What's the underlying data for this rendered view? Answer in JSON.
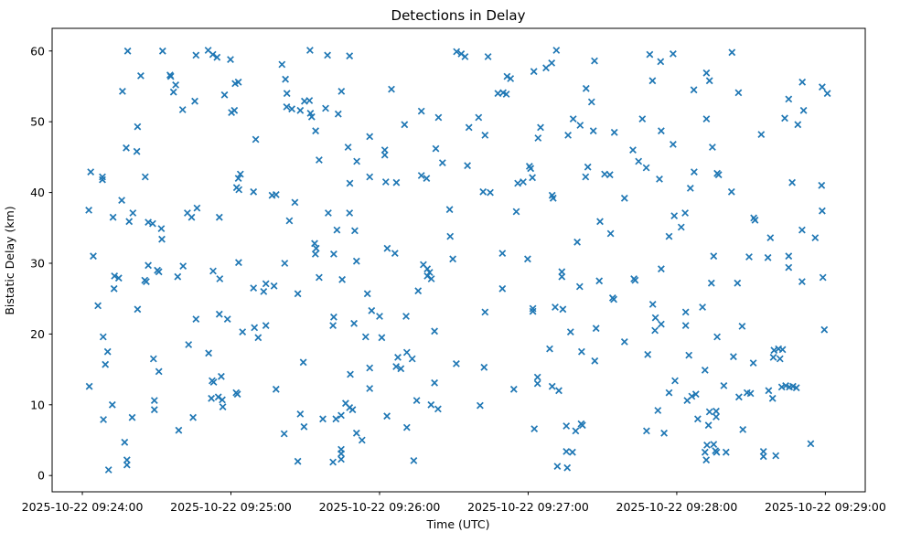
{
  "chart_data": {
    "type": "scatter",
    "title": "Detections in Delay",
    "xlabel": "Time (UTC)",
    "ylabel": "Bistatic Delay (km)",
    "marker": "x",
    "marker_color": "#1f77b4",
    "background_color": "#ffffff",
    "spine_color": "#000000",
    "grid": "off",
    "legend": "none",
    "x_unit": "seconds after 2025-10-22 09:24:00 UTC",
    "xlim_seconds": [
      -12.2,
      316.1
    ],
    "ylim": [
      -2.3,
      63.2
    ],
    "x_tick_seconds": [
      0,
      60,
      120,
      180,
      240,
      300
    ],
    "x_tick_labels": [
      "2025-10-22 09:24:00",
      "2025-10-22 09:25:00",
      "2025-10-22 09:26:00",
      "2025-10-22 09:27:00",
      "2025-10-22 09:28:00",
      "2025-10-22 09:29:00"
    ],
    "y_ticks": [
      0,
      10,
      20,
      30,
      40,
      50,
      60
    ],
    "points": [
      [
        18.3,
        60.0
      ],
      [
        32.4,
        60.0
      ],
      [
        45.9,
        59.4
      ],
      [
        50.8,
        60.1
      ],
      [
        52.7,
        59.5
      ],
      [
        54.4,
        59.1
      ],
      [
        59.8,
        58.8
      ],
      [
        23.6,
        56.5
      ],
      [
        35.4,
        56.6
      ],
      [
        35.7,
        56.4
      ],
      [
        37.7,
        55.2
      ],
      [
        36.8,
        54.2
      ],
      [
        16.2,
        54.3
      ],
      [
        61.7,
        55.4
      ],
      [
        63.0,
        55.6
      ],
      [
        57.4,
        53.8
      ],
      [
        45.4,
        52.9
      ],
      [
        40.5,
        51.7
      ],
      [
        60.2,
        51.3
      ],
      [
        61.4,
        51.6
      ],
      [
        22.3,
        49.3
      ],
      [
        17.7,
        46.3
      ],
      [
        22.0,
        45.8
      ],
      [
        3.4,
        42.9
      ],
      [
        8.1,
        42.2
      ],
      [
        8.1,
        41.8
      ],
      [
        25.4,
        42.2
      ],
      [
        63.8,
        42.6
      ],
      [
        63.0,
        42.0
      ],
      [
        91.9,
        60.1
      ],
      [
        99.0,
        59.4
      ],
      [
        107.9,
        59.3
      ],
      [
        80.6,
        58.1
      ],
      [
        82.0,
        56.0
      ],
      [
        82.6,
        54.0
      ],
      [
        104.6,
        54.3
      ],
      [
        124.8,
        54.6
      ],
      [
        82.5,
        52.1
      ],
      [
        89.7,
        52.9
      ],
      [
        91.7,
        53.0
      ],
      [
        84.6,
        51.8
      ],
      [
        88.0,
        51.6
      ],
      [
        92.1,
        51.2
      ],
      [
        92.6,
        50.7
      ],
      [
        98.2,
        51.9
      ],
      [
        103.3,
        51.1
      ],
      [
        136.9,
        51.5
      ],
      [
        143.8,
        50.6
      ],
      [
        130.1,
        49.6
      ],
      [
        94.2,
        48.7
      ],
      [
        70.0,
        47.5
      ],
      [
        116.0,
        47.9
      ],
      [
        107.3,
        46.4
      ],
      [
        122.1,
        46.0
      ],
      [
        122.1,
        45.3
      ],
      [
        142.7,
        46.2
      ],
      [
        95.6,
        44.6
      ],
      [
        110.8,
        44.4
      ],
      [
        145.4,
        44.2
      ],
      [
        116.0,
        42.2
      ],
      [
        136.9,
        42.4
      ],
      [
        139.0,
        42.0
      ],
      [
        122.5,
        41.5
      ],
      [
        126.8,
        41.4
      ],
      [
        151.1,
        59.9
      ],
      [
        153.0,
        59.6
      ],
      [
        154.5,
        59.2
      ],
      [
        163.8,
        59.2
      ],
      [
        191.4,
        60.1
      ],
      [
        189.5,
        58.3
      ],
      [
        187.2,
        57.6
      ],
      [
        182.3,
        57.1
      ],
      [
        206.8,
        58.6
      ],
      [
        229.1,
        59.5
      ],
      [
        171.5,
        56.4
      ],
      [
        172.9,
        56.1
      ],
      [
        230.2,
        55.8
      ],
      [
        167.8,
        54.0
      ],
      [
        169.9,
        54.1
      ],
      [
        171.2,
        53.9
      ],
      [
        203.4,
        54.7
      ],
      [
        205.6,
        52.8
      ],
      [
        160.0,
        50.6
      ],
      [
        156.1,
        49.2
      ],
      [
        162.6,
        48.1
      ],
      [
        198.2,
        50.4
      ],
      [
        201.0,
        49.5
      ],
      [
        226.1,
        50.4
      ],
      [
        185.0,
        49.2
      ],
      [
        184.0,
        47.7
      ],
      [
        196.1,
        48.1
      ],
      [
        206.3,
        48.7
      ],
      [
        214.8,
        48.5
      ],
      [
        222.3,
        46.0
      ],
      [
        224.6,
        44.4
      ],
      [
        227.7,
        43.5
      ],
      [
        155.5,
        43.8
      ],
      [
        180.5,
        43.7
      ],
      [
        181.0,
        43.4
      ],
      [
        181.7,
        42.1
      ],
      [
        204.1,
        43.6
      ],
      [
        203.2,
        42.2
      ],
      [
        210.9,
        42.6
      ],
      [
        213.0,
        42.5
      ],
      [
        175.8,
        41.3
      ],
      [
        178.0,
        41.5
      ],
      [
        238.5,
        59.6
      ],
      [
        233.5,
        58.5
      ],
      [
        262.3,
        59.8
      ],
      [
        252.0,
        56.9
      ],
      [
        253.2,
        55.8
      ],
      [
        246.9,
        54.5
      ],
      [
        264.9,
        54.1
      ],
      [
        290.7,
        55.6
      ],
      [
        298.7,
        54.9
      ],
      [
        300.8,
        54.0
      ],
      [
        285.2,
        53.2
      ],
      [
        291.2,
        51.6
      ],
      [
        283.6,
        50.5
      ],
      [
        288.9,
        49.6
      ],
      [
        252.0,
        50.4
      ],
      [
        233.7,
        48.7
      ],
      [
        274.1,
        48.2
      ],
      [
        238.5,
        46.8
      ],
      [
        254.4,
        46.4
      ],
      [
        247.0,
        42.9
      ],
      [
        256.3,
        42.7
      ],
      [
        256.9,
        42.5
      ],
      [
        233.0,
        41.9
      ],
      [
        286.6,
        41.4
      ],
      [
        298.5,
        41.0
      ],
      [
        62.3,
        40.7
      ],
      [
        63.2,
        40.4
      ],
      [
        2.6,
        37.5
      ],
      [
        15.9,
        38.9
      ],
      [
        12.4,
        36.5
      ],
      [
        20.4,
        37.1
      ],
      [
        18.9,
        35.9
      ],
      [
        26.6,
        35.8
      ],
      [
        28.4,
        35.6
      ],
      [
        31.9,
        34.9
      ],
      [
        32.1,
        33.4
      ],
      [
        46.3,
        37.8
      ],
      [
        42.4,
        37.1
      ],
      [
        44.1,
        36.5
      ],
      [
        55.3,
        36.5
      ],
      [
        4.4,
        31.0
      ],
      [
        26.6,
        29.7
      ],
      [
        30.3,
        29.0
      ],
      [
        30.9,
        28.8
      ],
      [
        40.7,
        29.6
      ],
      [
        38.5,
        28.1
      ],
      [
        63.1,
        30.1
      ],
      [
        52.8,
        28.9
      ],
      [
        55.5,
        27.8
      ],
      [
        13.0,
        28.2
      ],
      [
        14.7,
        27.9
      ],
      [
        25.2,
        27.6
      ],
      [
        25.8,
        27.4
      ],
      [
        12.8,
        26.4
      ],
      [
        6.3,
        24.0
      ],
      [
        22.3,
        23.5
      ],
      [
        45.9,
        22.1
      ],
      [
        55.3,
        22.8
      ],
      [
        58.6,
        22.1
      ],
      [
        64.7,
        20.3
      ],
      [
        108.0,
        41.3
      ],
      [
        69.1,
        40.1
      ],
      [
        76.6,
        39.6
      ],
      [
        78.2,
        39.7
      ],
      [
        85.8,
        38.6
      ],
      [
        83.6,
        36.0
      ],
      [
        99.3,
        37.1
      ],
      [
        107.9,
        37.1
      ],
      [
        102.8,
        34.7
      ],
      [
        110.0,
        34.6
      ],
      [
        93.8,
        32.8
      ],
      [
        94.4,
        32.1
      ],
      [
        94.1,
        31.3
      ],
      [
        101.5,
        31.3
      ],
      [
        110.7,
        30.3
      ],
      [
        123.1,
        32.1
      ],
      [
        126.2,
        31.4
      ],
      [
        149.6,
        30.6
      ],
      [
        148.3,
        37.6
      ],
      [
        148.5,
        33.8
      ],
      [
        81.7,
        30.0
      ],
      [
        137.7,
        29.8
      ],
      [
        139.3,
        29.2
      ],
      [
        140.2,
        28.7
      ],
      [
        139.3,
        28.2
      ],
      [
        140.9,
        27.8
      ],
      [
        95.6,
        28.0
      ],
      [
        104.9,
        27.7
      ],
      [
        74.1,
        27.1
      ],
      [
        77.4,
        26.8
      ],
      [
        73.2,
        26.0
      ],
      [
        69.1,
        26.5
      ],
      [
        87.0,
        25.7
      ],
      [
        115.1,
        25.7
      ],
      [
        135.6,
        26.1
      ],
      [
        116.8,
        23.3
      ],
      [
        120.0,
        22.5
      ],
      [
        101.5,
        22.4
      ],
      [
        101.2,
        21.2
      ],
      [
        130.7,
        22.5
      ],
      [
        109.7,
        21.5
      ],
      [
        74.1,
        21.2
      ],
      [
        69.5,
        20.9
      ],
      [
        142.2,
        20.4
      ],
      [
        161.8,
        40.1
      ],
      [
        164.7,
        40.0
      ],
      [
        189.7,
        39.6
      ],
      [
        190.1,
        39.2
      ],
      [
        218.9,
        39.2
      ],
      [
        175.2,
        37.3
      ],
      [
        209.0,
        35.9
      ],
      [
        213.3,
        34.2
      ],
      [
        199.8,
        33.0
      ],
      [
        169.6,
        31.4
      ],
      [
        179.8,
        30.6
      ],
      [
        193.6,
        28.8
      ],
      [
        193.6,
        28.1
      ],
      [
        200.8,
        26.7
      ],
      [
        208.7,
        27.5
      ],
      [
        222.7,
        27.8
      ],
      [
        223.2,
        27.6
      ],
      [
        169.6,
        26.4
      ],
      [
        214.1,
        25.1
      ],
      [
        214.6,
        24.9
      ],
      [
        162.6,
        23.1
      ],
      [
        181.9,
        23.6
      ],
      [
        181.9,
        23.2
      ],
      [
        190.9,
        23.8
      ],
      [
        194.0,
        23.5
      ],
      [
        230.3,
        24.2
      ],
      [
        231.4,
        22.3
      ],
      [
        197.1,
        20.3
      ],
      [
        207.4,
        20.8
      ],
      [
        231.2,
        20.5
      ],
      [
        245.5,
        40.6
      ],
      [
        262.1,
        40.1
      ],
      [
        239.0,
        36.7
      ],
      [
        243.4,
        37.1
      ],
      [
        241.8,
        35.1
      ],
      [
        236.9,
        33.8
      ],
      [
        233.7,
        29.2
      ],
      [
        271.1,
        36.4
      ],
      [
        271.6,
        36.1
      ],
      [
        298.7,
        37.4
      ],
      [
        290.6,
        34.7
      ],
      [
        295.9,
        33.6
      ],
      [
        277.8,
        33.6
      ],
      [
        254.9,
        31.0
      ],
      [
        269.2,
        30.9
      ],
      [
        276.8,
        30.8
      ],
      [
        285.2,
        31.0
      ],
      [
        285.2,
        29.4
      ],
      [
        299.0,
        28.0
      ],
      [
        290.6,
        27.4
      ],
      [
        254.0,
        27.2
      ],
      [
        264.5,
        27.2
      ],
      [
        233.7,
        21.4
      ],
      [
        243.6,
        23.1
      ],
      [
        250.4,
        23.8
      ],
      [
        243.6,
        21.2
      ],
      [
        266.4,
        21.1
      ],
      [
        299.6,
        20.6
      ],
      [
        256.3,
        19.6
      ],
      [
        8.4,
        19.6
      ],
      [
        42.9,
        18.5
      ],
      [
        10.2,
        17.5
      ],
      [
        9.3,
        15.7
      ],
      [
        28.7,
        16.5
      ],
      [
        30.9,
        14.7
      ],
      [
        51.0,
        17.3
      ],
      [
        2.8,
        12.6
      ],
      [
        52.4,
        13.4
      ],
      [
        53.0,
        13.2
      ],
      [
        56.1,
        14.0
      ],
      [
        52.1,
        10.9
      ],
      [
        54.9,
        11.1
      ],
      [
        56.5,
        10.7
      ],
      [
        56.7,
        9.7
      ],
      [
        62.1,
        11.7
      ],
      [
        62.6,
        11.5
      ],
      [
        12.1,
        10.0
      ],
      [
        29.1,
        10.6
      ],
      [
        29.1,
        9.3
      ],
      [
        8.5,
        7.9
      ],
      [
        20.1,
        8.2
      ],
      [
        44.7,
        8.2
      ],
      [
        38.9,
        6.4
      ],
      [
        17.1,
        4.7
      ],
      [
        18.0,
        2.2
      ],
      [
        18.0,
        1.5
      ],
      [
        10.6,
        0.8
      ],
      [
        71.0,
        19.5
      ],
      [
        114.4,
        19.6
      ],
      [
        120.9,
        19.5
      ],
      [
        89.2,
        16.0
      ],
      [
        127.4,
        16.7
      ],
      [
        131.0,
        17.4
      ],
      [
        133.2,
        16.5
      ],
      [
        126.7,
        15.4
      ],
      [
        128.6,
        15.1
      ],
      [
        116.0,
        15.2
      ],
      [
        108.2,
        14.3
      ],
      [
        151.0,
        15.8
      ],
      [
        142.2,
        13.1
      ],
      [
        78.2,
        12.2
      ],
      [
        116.0,
        12.3
      ],
      [
        135.0,
        10.6
      ],
      [
        140.8,
        10.0
      ],
      [
        143.6,
        9.4
      ],
      [
        106.3,
        10.2
      ],
      [
        107.9,
        9.6
      ],
      [
        109.1,
        9.3
      ],
      [
        102.4,
        8.0
      ],
      [
        104.5,
        8.5
      ],
      [
        88.0,
        8.7
      ],
      [
        97.1,
        8.0
      ],
      [
        123.0,
        8.4
      ],
      [
        89.5,
        6.9
      ],
      [
        81.5,
        5.9
      ],
      [
        131.0,
        6.8
      ],
      [
        110.7,
        6.0
      ],
      [
        112.9,
        5.0
      ],
      [
        104.5,
        3.7
      ],
      [
        104.5,
        3.1
      ],
      [
        101.2,
        1.9
      ],
      [
        104.5,
        2.3
      ],
      [
        87.0,
        2.0
      ],
      [
        133.8,
        2.1
      ],
      [
        218.9,
        18.9
      ],
      [
        162.2,
        15.3
      ],
      [
        188.7,
        17.9
      ],
      [
        201.6,
        17.5
      ],
      [
        206.9,
        16.2
      ],
      [
        228.3,
        17.1
      ],
      [
        232.4,
        9.2
      ],
      [
        183.8,
        13.9
      ],
      [
        183.8,
        13.0
      ],
      [
        174.2,
        12.2
      ],
      [
        189.7,
        12.6
      ],
      [
        192.4,
        12.0
      ],
      [
        160.6,
        9.9
      ],
      [
        182.5,
        6.6
      ],
      [
        195.4,
        7.0
      ],
      [
        199.2,
        6.3
      ],
      [
        201.4,
        7.3
      ],
      [
        201.9,
        7.1
      ],
      [
        227.8,
        6.3
      ],
      [
        195.4,
        3.4
      ],
      [
        197.9,
        3.3
      ],
      [
        191.8,
        1.3
      ],
      [
        195.8,
        1.1
      ],
      [
        244.9,
        17.0
      ],
      [
        251.4,
        14.9
      ],
      [
        262.9,
        16.8
      ],
      [
        270.9,
        15.9
      ],
      [
        279.3,
        17.7
      ],
      [
        281.1,
        17.9
      ],
      [
        282.7,
        17.8
      ],
      [
        279.0,
        16.7
      ],
      [
        281.7,
        16.5
      ],
      [
        239.3,
        13.4
      ],
      [
        236.9,
        11.7
      ],
      [
        259.0,
        12.7
      ],
      [
        246.1,
        11.2
      ],
      [
        247.7,
        11.5
      ],
      [
        244.2,
        10.6
      ],
      [
        265.1,
        11.1
      ],
      [
        268.4,
        11.7
      ],
      [
        269.8,
        11.6
      ],
      [
        277.1,
        12.0
      ],
      [
        278.7,
        10.9
      ],
      [
        282.4,
        12.5
      ],
      [
        284.0,
        12.7
      ],
      [
        285.5,
        12.5
      ],
      [
        286.9,
        12.6
      ],
      [
        288.3,
        12.4
      ],
      [
        234.9,
        6.0
      ],
      [
        248.5,
        8.0
      ],
      [
        253.2,
        9.0
      ],
      [
        255.9,
        9.1
      ],
      [
        255.9,
        8.3
      ],
      [
        252.8,
        7.1
      ],
      [
        266.7,
        6.5
      ],
      [
        294.1,
        4.5
      ],
      [
        252.2,
        4.3
      ],
      [
        254.9,
        4.4
      ],
      [
        255.6,
        3.5
      ],
      [
        256.1,
        3.3
      ],
      [
        251.4,
        3.3
      ],
      [
        251.9,
        2.2
      ],
      [
        259.9,
        3.3
      ],
      [
        275.0,
        3.4
      ],
      [
        275.0,
        2.7
      ],
      [
        280.0,
        2.8
      ]
    ]
  }
}
